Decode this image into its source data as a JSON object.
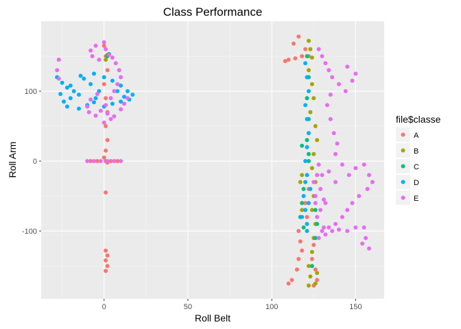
{
  "chart_data": {
    "type": "scatter",
    "title": "Class Performance",
    "xlabel": "Roll Belt",
    "ylabel": "Roll Arm",
    "xlim": [
      -37.5,
      167
    ],
    "ylim": [
      -197,
      200
    ],
    "x_ticks": [
      0,
      50,
      100,
      150
    ],
    "y_ticks": [
      -100,
      0,
      100
    ],
    "x_tick_labels": [
      "0",
      "50",
      "100",
      "150"
    ],
    "y_tick_labels": [
      "-100",
      "0",
      "100"
    ],
    "grid": true,
    "legend_position": "right",
    "legend_title": "file$classe",
    "panel_background": "#ebebeb",
    "series": [
      {
        "name": "A",
        "color": "#F8766D",
        "points": [
          [
            0,
            165
          ],
          [
            1,
            150
          ],
          [
            2,
            130
          ],
          [
            0,
            110
          ],
          [
            1,
            90
          ],
          [
            2,
            70
          ],
          [
            1,
            50
          ],
          [
            2,
            30
          ],
          [
            1,
            15
          ],
          [
            0,
            5
          ],
          [
            1,
            0
          ],
          [
            2,
            -2
          ],
          [
            -8,
            0
          ],
          [
            -4,
            0
          ],
          [
            4,
            0
          ],
          [
            8,
            0
          ],
          [
            1,
            -45
          ],
          [
            1,
            -128
          ],
          [
            2,
            -135
          ],
          [
            1,
            -142
          ],
          [
            2,
            -150
          ],
          [
            1,
            -157
          ],
          [
            108,
            143
          ],
          [
            110,
            145
          ],
          [
            114,
            147
          ],
          [
            118,
            150
          ],
          [
            113,
            168
          ],
          [
            116,
            178
          ],
          [
            120,
            160
          ],
          [
            122,
            150
          ],
          [
            116,
            -100
          ],
          [
            117,
            -115
          ],
          [
            118,
            -128
          ],
          [
            116,
            -140
          ],
          [
            115,
            -155
          ],
          [
            112,
            -170
          ],
          [
            110,
            -175
          ],
          [
            126,
            -155
          ],
          [
            127,
            -170
          ],
          [
            125,
            -178
          ],
          [
            124,
            -140
          ],
          [
            125,
            -120
          ],
          [
            121,
            -80
          ],
          [
            120,
            -60
          ],
          [
            122,
            -40
          ]
        ]
      },
      {
        "name": "B",
        "color": "#A3A500",
        "points": [
          [
            2,
            152
          ],
          [
            1,
            145
          ],
          [
            122,
            172
          ],
          [
            123,
            160
          ],
          [
            124,
            148
          ],
          [
            122,
            130
          ],
          [
            124,
            110
          ],
          [
            125,
            90
          ],
          [
            123,
            70
          ],
          [
            126,
            50
          ],
          [
            127,
            30
          ],
          [
            125,
            10
          ],
          [
            124,
            -10
          ],
          [
            126,
            -30
          ],
          [
            125,
            -50
          ],
          [
            124,
            -70
          ],
          [
            126,
            -90
          ],
          [
            125,
            -110
          ],
          [
            124,
            -130
          ],
          [
            122,
            -150
          ],
          [
            123,
            -165
          ],
          [
            122,
            -178
          ],
          [
            117,
            -30
          ],
          [
            118,
            -20
          ],
          [
            118,
            -70
          ],
          [
            127,
            -160
          ],
          [
            126,
            -175
          ]
        ]
      },
      {
        "name": "C",
        "color": "#00BF7D",
        "points": [
          [
            2,
            150
          ],
          [
            3,
            153
          ],
          [
            121,
            150
          ],
          [
            122,
            120
          ],
          [
            121,
            90
          ],
          [
            122,
            60
          ],
          [
            121,
            30
          ],
          [
            122,
            0
          ],
          [
            119,
            -40
          ],
          [
            118,
            -60
          ],
          [
            117,
            -80
          ],
          [
            119,
            -95
          ],
          [
            126,
            -70
          ],
          [
            127,
            -90
          ],
          [
            126,
            -110
          ],
          [
            124,
            -150
          ],
          [
            122,
            10
          ],
          [
            118,
            22
          ]
        ]
      },
      {
        "name": "D",
        "color": "#00B0F6",
        "points": [
          [
            -28,
            120
          ],
          [
            -25,
            112
          ],
          [
            -22,
            105
          ],
          [
            -18,
            100
          ],
          [
            -15,
            95
          ],
          [
            -20,
            90
          ],
          [
            -24,
            85
          ],
          [
            -22,
            78
          ],
          [
            -15,
            75
          ],
          [
            -10,
            80
          ],
          [
            -5,
            90
          ],
          [
            -3,
            100
          ],
          [
            -8,
            110
          ],
          [
            -12,
            118
          ],
          [
            -6,
            125
          ],
          [
            0,
            120
          ],
          [
            5,
            115
          ],
          [
            10,
            108
          ],
          [
            14,
            100
          ],
          [
            17,
            95
          ],
          [
            15,
            88
          ],
          [
            10,
            85
          ],
          [
            5,
            82
          ],
          [
            0,
            78
          ],
          [
            -20,
            108
          ],
          [
            -14,
            122
          ],
          [
            -26,
            96
          ],
          [
            -6,
            84
          ],
          [
            12,
            92
          ],
          [
            8,
            100
          ],
          [
            120,
            140
          ],
          [
            121,
            120
          ],
          [
            122,
            100
          ],
          [
            120,
            80
          ],
          [
            121,
            60
          ],
          [
            122,
            40
          ],
          [
            121,
            20
          ],
          [
            120,
            0
          ],
          [
            121,
            -20
          ],
          [
            120,
            -30
          ],
          [
            119,
            -50
          ],
          [
            120,
            -70
          ],
          [
            121,
            -90
          ],
          [
            118,
            -80
          ],
          [
            121,
            -100
          ],
          [
            122,
            -60
          ],
          [
            123,
            -40
          ]
        ]
      },
      {
        "name": "E",
        "color": "#E76BF3",
        "points": [
          [
            -27,
            145
          ],
          [
            -28,
            130
          ],
          [
            -27,
            118
          ],
          [
            -5,
            165
          ],
          [
            -8,
            158
          ],
          [
            -7,
            150
          ],
          [
            -3,
            145
          ],
          [
            0,
            170
          ],
          [
            1,
            160
          ],
          [
            3,
            152
          ],
          [
            5,
            148
          ],
          [
            7,
            140
          ],
          [
            9,
            130
          ],
          [
            10,
            120
          ],
          [
            8,
            110
          ],
          [
            6,
            100
          ],
          [
            4,
            90
          ],
          [
            1,
            80
          ],
          [
            -2,
            72
          ],
          [
            -5,
            65
          ],
          [
            -9,
            70
          ],
          [
            -10,
            78
          ],
          [
            -8,
            88
          ],
          [
            -4,
            96
          ],
          [
            2,
            68
          ],
          [
            4,
            60
          ],
          [
            6,
            64
          ],
          [
            10,
            74
          ],
          [
            12,
            82
          ],
          [
            14,
            90
          ],
          [
            0,
            55
          ],
          [
            -10,
            0
          ],
          [
            -6,
            0
          ],
          [
            -2,
            0
          ],
          [
            2,
            0
          ],
          [
            6,
            0
          ],
          [
            10,
            0
          ],
          [
            128,
            160
          ],
          [
            130,
            150
          ],
          [
            132,
            140
          ],
          [
            134,
            130
          ],
          [
            136,
            120
          ],
          [
            140,
            110
          ],
          [
            144,
            100
          ],
          [
            148,
            115
          ],
          [
            150,
            125
          ],
          [
            145,
            135
          ],
          [
            135,
            95
          ],
          [
            133,
            80
          ],
          [
            135,
            60
          ],
          [
            137,
            40
          ],
          [
            139,
            25
          ],
          [
            138,
            10
          ],
          [
            130,
            -20
          ],
          [
            134,
            -15
          ],
          [
            138,
            -30
          ],
          [
            142,
            -5
          ],
          [
            146,
            -20
          ],
          [
            150,
            -10
          ],
          [
            155,
            -5
          ],
          [
            158,
            -20
          ],
          [
            160,
            -30
          ],
          [
            157,
            -40
          ],
          [
            152,
            -50
          ],
          [
            148,
            -60
          ],
          [
            145,
            -70
          ],
          [
            142,
            -80
          ],
          [
            138,
            -90
          ],
          [
            134,
            -95
          ],
          [
            130,
            -100
          ],
          [
            128,
            -110
          ],
          [
            132,
            -105
          ],
          [
            136,
            -100
          ],
          [
            140,
            -98
          ],
          [
            145,
            -100
          ],
          [
            150,
            -95
          ],
          [
            155,
            -95
          ],
          [
            156,
            -110
          ],
          [
            158,
            -125
          ],
          [
            154,
            -118
          ],
          [
            126,
            -50
          ],
          [
            129,
            -40
          ],
          [
            129,
            -70
          ],
          [
            131,
            -55
          ],
          [
            127,
            -80
          ],
          [
            131,
            -95
          ],
          [
            132,
            -60
          ],
          [
            127,
            -20
          ],
          [
            125,
            -30
          ],
          [
            128,
            -5
          ],
          [
            126,
            -60
          ]
        ]
      }
    ]
  }
}
